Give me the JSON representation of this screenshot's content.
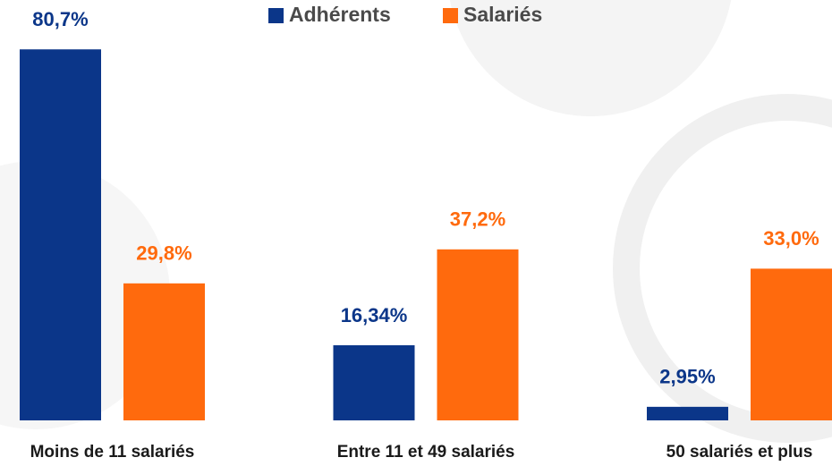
{
  "chart_data": {
    "type": "bar",
    "categories": [
      "Moins de 11 salariés",
      "Entre 11 et 49 salariés",
      "50 salariés et plus"
    ],
    "series": [
      {
        "name": "Adhérents",
        "color": "#0b3689",
        "values": [
          80.7,
          16.34,
          2.95
        ],
        "value_labels": [
          "80,7%",
          "16,34%",
          "2,95%"
        ]
      },
      {
        "name": "Salariés",
        "color": "#ff6a0d",
        "values": [
          29.8,
          37.2,
          33.0
        ],
        "value_labels": [
          "29,8%",
          "37,2%",
          "33,0%"
        ]
      }
    ],
    "legend": "top"
  }
}
